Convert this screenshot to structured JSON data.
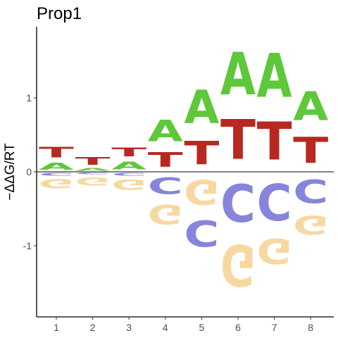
{
  "chart_data": {
    "type": "sequence-logo",
    "title": "Prop1",
    "xlabel": "",
    "ylabel": "−ΔΔG/RT",
    "x": [
      1,
      2,
      3,
      4,
      5,
      6,
      7,
      8
    ],
    "x_tick_labels": [
      "1",
      "2",
      "3",
      "4",
      "5",
      "6",
      "7",
      "8"
    ],
    "y_ticks": [
      -1,
      0,
      1
    ],
    "y_tick_labels": [
      "-1",
      "0",
      "1"
    ],
    "ylim": [
      -1.95,
      1.95
    ],
    "grid": false,
    "zero_line": true,
    "colors": {
      "A": "#5ec73a",
      "C": "#8784dc",
      "G": "#f7d8a0",
      "T": "#b82820"
    },
    "positions": [
      {
        "pos": 1,
        "above": [
          {
            "letter": "A",
            "value": 0.15
          },
          {
            "letter": "T",
            "value": 0.23
          }
        ],
        "below": [
          {
            "letter": "C",
            "value": 0.06
          },
          {
            "letter": "G",
            "value": 0.2
          }
        ]
      },
      {
        "pos": 2,
        "above": [
          {
            "letter": "A",
            "value": 0.06
          },
          {
            "letter": "T",
            "value": 0.17
          }
        ],
        "below": [
          {
            "letter": "C",
            "value": 0.04
          },
          {
            "letter": "G",
            "value": 0.18
          }
        ]
      },
      {
        "pos": 3,
        "above": [
          {
            "letter": "A",
            "value": 0.17
          },
          {
            "letter": "T",
            "value": 0.19
          }
        ],
        "below": [
          {
            "letter": "C",
            "value": 0.06
          },
          {
            "letter": "G",
            "value": 0.22
          }
        ]
      },
      {
        "pos": 4,
        "above": [
          {
            "letter": "T",
            "value": 0.32
          },
          {
            "letter": "A",
            "value": 0.47
          }
        ],
        "below": [
          {
            "letter": "C",
            "value": 0.36
          },
          {
            "letter": "G",
            "value": 0.42
          }
        ]
      },
      {
        "pos": 5,
        "above": [
          {
            "letter": "T",
            "value": 0.51
          },
          {
            "letter": "A",
            "value": 0.73
          }
        ],
        "below": [
          {
            "letter": "G",
            "value": 0.54
          },
          {
            "letter": "C",
            "value": 0.57
          }
        ]
      },
      {
        "pos": 6,
        "above": [
          {
            "letter": "T",
            "value": 0.86
          },
          {
            "letter": "A",
            "value": 0.92
          }
        ],
        "below": [
          {
            "letter": "C",
            "value": 0.81
          },
          {
            "letter": "G",
            "value": 0.89
          }
        ]
      },
      {
        "pos": 7,
        "above": [
          {
            "letter": "T",
            "value": 0.82
          },
          {
            "letter": "A",
            "value": 0.95
          }
        ],
        "below": [
          {
            "letter": "C",
            "value": 0.79
          },
          {
            "letter": "G",
            "value": 0.55
          }
        ]
      },
      {
        "pos": 8,
        "above": [
          {
            "letter": "T",
            "value": 0.57
          },
          {
            "letter": "A",
            "value": 0.63
          }
        ],
        "below": [
          {
            "letter": "C",
            "value": 0.51
          },
          {
            "letter": "G",
            "value": 0.41
          }
        ]
      }
    ]
  }
}
